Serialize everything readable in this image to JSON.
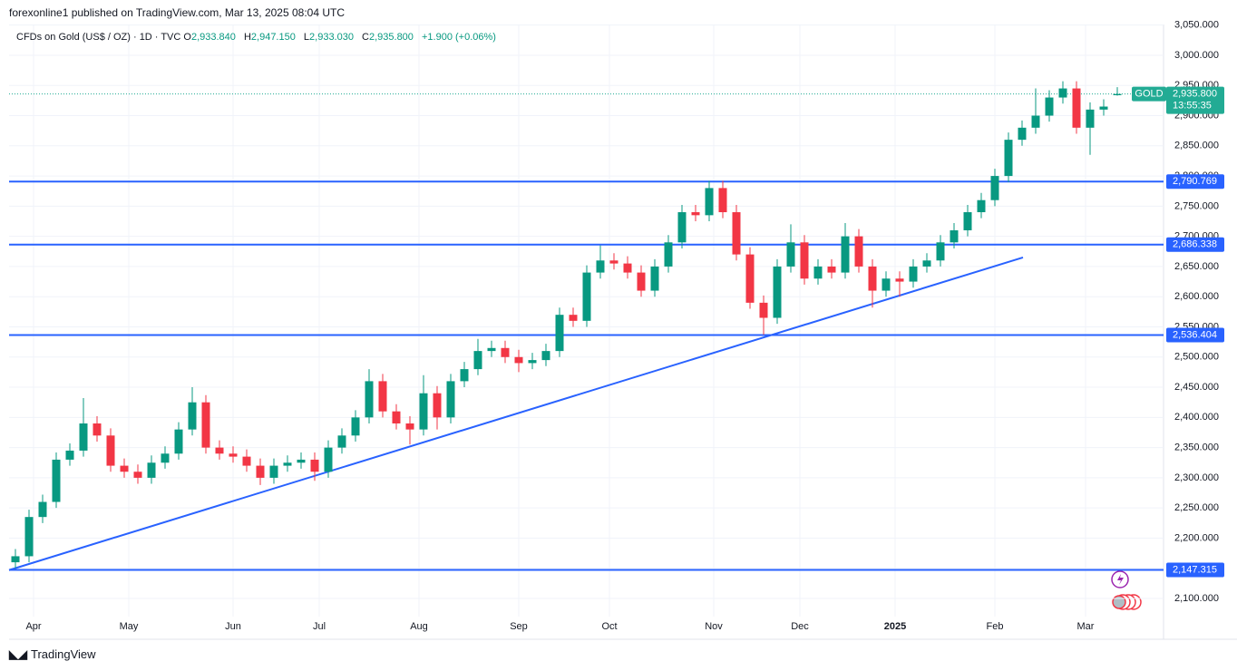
{
  "header": {
    "publisher": "forexonline1 published on TradingView.com, Mar 13, 2025 08:04 UTC"
  },
  "legend": {
    "symbol": "CFDs on Gold (US$ / OZ) · 1D · TVC",
    "open_key": "O",
    "open": "2,933.840",
    "high_key": "H",
    "high": "2,947.150",
    "low_key": "L",
    "low": "2,933.030",
    "close_key": "C",
    "close": "2,935.800",
    "change": "+1.900 (+0.06%)"
  },
  "chart_data": {
    "type": "candlestick",
    "x": [
      1,
      4,
      7,
      10,
      13,
      16,
      19,
      22,
      25,
      28,
      31,
      34,
      37,
      40,
      43,
      46,
      49,
      52,
      55,
      58,
      61,
      64,
      67,
      70,
      73,
      76,
      79,
      82,
      85,
      88,
      91,
      94,
      97,
      100,
      103,
      106,
      109,
      112,
      115,
      118,
      121,
      124,
      127,
      130,
      133,
      136,
      139,
      142,
      145,
      148,
      151,
      154,
      157,
      160,
      163,
      166,
      169,
      172,
      175,
      178,
      181,
      184,
      187,
      190,
      193,
      196,
      199,
      202,
      205,
      208,
      211,
      214,
      217,
      220,
      223,
      226,
      229,
      232,
      235,
      238,
      241,
      244
    ],
    "open": [
      2160,
      2170,
      2235,
      2260,
      2330,
      2345,
      2390,
      2370,
      2320,
      2310,
      2300,
      2325,
      2340,
      2380,
      2425,
      2350,
      2340,
      2335,
      2320,
      2300,
      2320,
      2325,
      2330,
      2310,
      2350,
      2370,
      2400,
      2460,
      2410,
      2390,
      2380,
      2440,
      2400,
      2460,
      2480,
      2510,
      2515,
      2500,
      2490,
      2495,
      2510,
      2570,
      2560,
      2640,
      2660,
      2655,
      2640,
      2610,
      2650,
      2690,
      2740,
      2735,
      2780,
      2740,
      2670,
      2590,
      2565,
      2650,
      2690,
      2630,
      2650,
      2640,
      2700,
      2650,
      2610,
      2630,
      2625,
      2650,
      2660,
      2690,
      2710,
      2740,
      2760,
      2800,
      2860,
      2880,
      2900,
      2930,
      2945,
      2880,
      2910,
      2933.84
    ],
    "high": [
      2182,
      2247,
      2272,
      2342,
      2357,
      2432,
      2402,
      2382,
      2332,
      2322,
      2337,
      2352,
      2392,
      2450,
      2437,
      2362,
      2352,
      2347,
      2332,
      2332,
      2337,
      2342,
      2342,
      2362,
      2382,
      2412,
      2480,
      2472,
      2422,
      2402,
      2470,
      2452,
      2472,
      2492,
      2530,
      2527,
      2527,
      2512,
      2507,
      2522,
      2582,
      2582,
      2652,
      2685,
      2672,
      2667,
      2652,
      2662,
      2702,
      2752,
      2752,
      2792,
      2792,
      2752,
      2682,
      2602,
      2662,
      2720,
      2702,
      2662,
      2662,
      2722,
      2712,
      2662,
      2642,
      2642,
      2662,
      2672,
      2702,
      2722,
      2752,
      2772,
      2812,
      2872,
      2892,
      2945,
      2942,
      2957,
      2957,
      2922,
      2927,
      2947.15
    ],
    "low": [
      2150,
      2160,
      2225,
      2250,
      2320,
      2335,
      2360,
      2310,
      2300,
      2290,
      2290,
      2315,
      2330,
      2370,
      2340,
      2330,
      2325,
      2310,
      2288,
      2290,
      2310,
      2315,
      2295,
      2300,
      2340,
      2360,
      2390,
      2400,
      2380,
      2355,
      2370,
      2380,
      2390,
      2450,
      2470,
      2500,
      2490,
      2475,
      2480,
      2485,
      2500,
      2550,
      2550,
      2630,
      2645,
      2630,
      2600,
      2600,
      2640,
      2680,
      2725,
      2725,
      2730,
      2660,
      2580,
      2537,
      2555,
      2640,
      2620,
      2620,
      2630,
      2630,
      2640,
      2582,
      2600,
      2600,
      2615,
      2640,
      2650,
      2680,
      2700,
      2730,
      2750,
      2790,
      2850,
      2870,
      2890,
      2920,
      2870,
      2835,
      2900,
      2933.03
    ],
    "close": [
      2170,
      2235,
      2260,
      2330,
      2345,
      2390,
      2370,
      2320,
      2310,
      2300,
      2325,
      2340,
      2380,
      2425,
      2350,
      2340,
      2335,
      2320,
      2300,
      2320,
      2325,
      2330,
      2310,
      2350,
      2370,
      2400,
      2460,
      2410,
      2390,
      2380,
      2440,
      2400,
      2460,
      2480,
      2510,
      2515,
      2500,
      2490,
      2495,
      2510,
      2570,
      2560,
      2640,
      2660,
      2655,
      2640,
      2610,
      2650,
      2690,
      2740,
      2735,
      2780,
      2740,
      2670,
      2590,
      2565,
      2650,
      2690,
      2630,
      2650,
      2640,
      2700,
      2650,
      2610,
      2630,
      2625,
      2650,
      2660,
      2690,
      2710,
      2740,
      2760,
      2800,
      2860,
      2880,
      2900,
      2930,
      2945,
      2880,
      2910,
      2915,
      2935.8
    ],
    "up_color": "#089981",
    "down_color": "#f23645",
    "xlim": [
      -0.4,
      254.2
    ],
    "xticks": [
      {
        "value": 5,
        "label": "Apr"
      },
      {
        "value": 26,
        "label": "May"
      },
      {
        "value": 49,
        "label": "Jun"
      },
      {
        "value": 68,
        "label": "Jul"
      },
      {
        "value": 90,
        "label": "Aug"
      },
      {
        "value": 112,
        "label": "Sep"
      },
      {
        "value": 132,
        "label": "Oct"
      },
      {
        "value": 155,
        "label": "Nov"
      },
      {
        "value": 174,
        "label": "Dec"
      },
      {
        "value": 195,
        "label": "2025"
      },
      {
        "value": 217,
        "label": "Feb"
      },
      {
        "value": 237,
        "label": "Mar"
      }
    ],
    "ylim": [
      2070,
      3051
    ],
    "yticks": [
      {
        "value": 2100,
        "label": "2,100.000"
      },
      {
        "value": 2150,
        "label": "2,150.000"
      },
      {
        "value": 2200,
        "label": "2,200.000"
      },
      {
        "value": 2250,
        "label": "2,250.000"
      },
      {
        "value": 2300,
        "label": "2,300.000"
      },
      {
        "value": 2350,
        "label": "2,350.000"
      },
      {
        "value": 2400,
        "label": "2,400.000"
      },
      {
        "value": 2450,
        "label": "2,450.000"
      },
      {
        "value": 2500,
        "label": "2,500.000"
      },
      {
        "value": 2550,
        "label": "2,550.000"
      },
      {
        "value": 2600,
        "label": "2,600.000"
      },
      {
        "value": 2650,
        "label": "2,650.000"
      },
      {
        "value": 2700,
        "label": "2,700.000"
      },
      {
        "value": 2750,
        "label": "2,750.000"
      },
      {
        "value": 2800,
        "label": "2,800.000"
      },
      {
        "value": 2850,
        "label": "2,850.000"
      },
      {
        "value": 2900,
        "label": "2,900.000"
      },
      {
        "value": 2950,
        "label": "2,950.000"
      },
      {
        "value": 3000,
        "label": "3,000.000"
      },
      {
        "value": 3050,
        "label": "3,050.000"
      }
    ],
    "grid": true,
    "level_color": "#2962ff",
    "levels": [
      {
        "value": 2790.769,
        "label": "2,790.769"
      },
      {
        "value": 2686.338,
        "label": "2,686.338"
      },
      {
        "value": 2536.404,
        "label": "2,536.404"
      },
      {
        "value": 2147.315,
        "label": "2,147.315"
      }
    ],
    "trendline": {
      "x": [
        -0.4,
        223.2
      ],
      "y": [
        2147,
        2665
      ]
    },
    "last_price": {
      "value": 2935.8,
      "label": "2,935.800",
      "symbol": "GOLD",
      "countdown": "13:55:35",
      "color": "#22ab94"
    }
  },
  "footer": {
    "brand": "TradingView"
  }
}
